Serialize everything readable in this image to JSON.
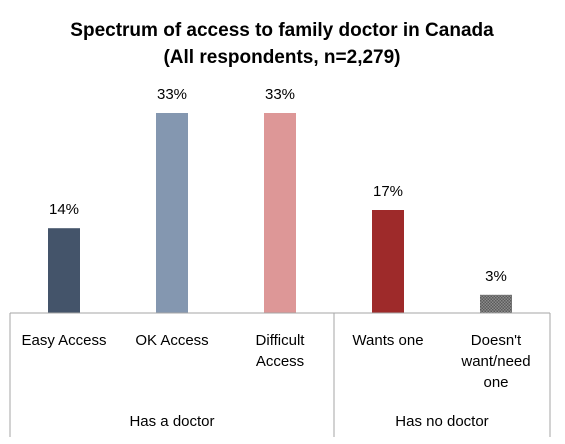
{
  "chart_data": {
    "type": "bar",
    "title": "Spectrum of access to family doctor in Canada",
    "subtitle": "(All respondents, n=2,279)",
    "xlabel": "",
    "ylabel": "",
    "ylim": [
      0,
      40
    ],
    "grid": false,
    "legend": "none",
    "categories": [
      "Easy Access",
      "OK Access",
      "Difficult Access",
      "Wants one",
      "Doesn't want/need one"
    ],
    "category_lines": [
      [
        "Easy Access"
      ],
      [
        "OK Access"
      ],
      [
        "Difficult",
        "Access"
      ],
      [
        "Wants one"
      ],
      [
        "Doesn't",
        "want/need",
        "one"
      ]
    ],
    "values": [
      14,
      33,
      33,
      17,
      3
    ],
    "data_labels": [
      "14%",
      "33%",
      "33%",
      "17%",
      "3%"
    ],
    "colors": [
      "#44546a",
      "#8497b0",
      "#dd9797",
      "#9e2a2a",
      "#7f7f7f"
    ],
    "groups": [
      {
        "label": "Has a doctor",
        "count": 3
      },
      {
        "label": "Has no doctor",
        "count": 2
      }
    ]
  }
}
